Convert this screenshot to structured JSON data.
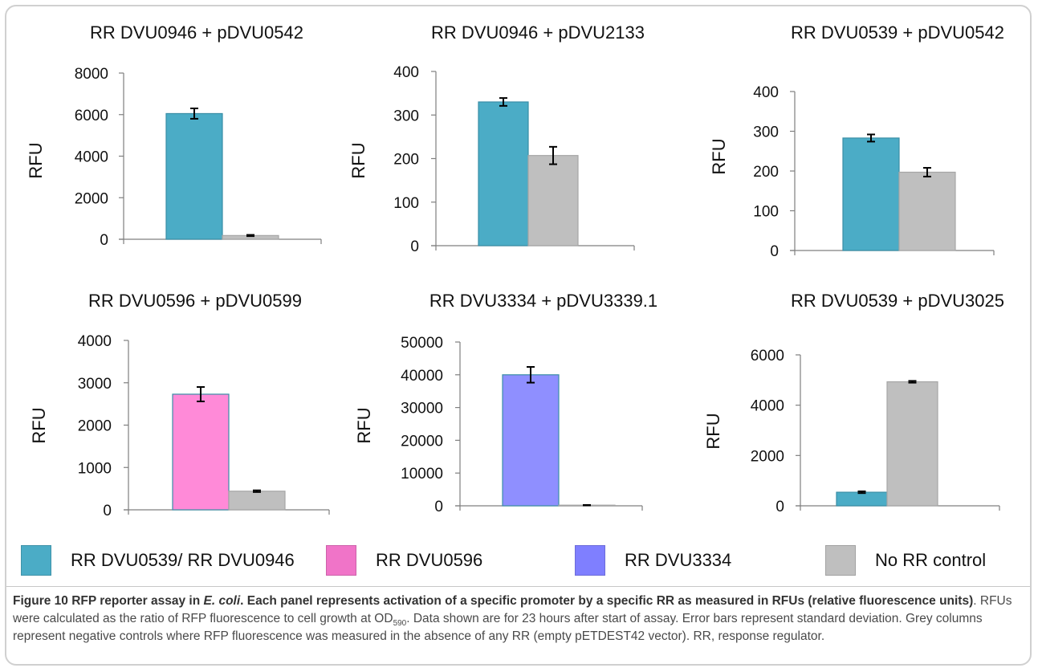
{
  "chart_data": [
    {
      "type": "bar",
      "title": "RR DVU0946 + pDVU0542",
      "ylabel": "RFU",
      "ylim": [
        0,
        8000
      ],
      "yticks": [
        0,
        2000,
        4000,
        6000,
        8000
      ],
      "bars": [
        {
          "value": 6050,
          "error": 250,
          "color": "#4bacc6",
          "legend": "RR DVU0539/ RR DVU0946"
        },
        {
          "value": 180,
          "error": 30,
          "color": "#bfbfbf",
          "legend": "No RR control"
        }
      ]
    },
    {
      "type": "bar",
      "title": "RR DVU0946 + pDVU2133",
      "ylabel": "RFU",
      "ylim": [
        0,
        400
      ],
      "yticks": [
        0,
        100,
        200,
        300,
        400
      ],
      "bars": [
        {
          "value": 330,
          "error": 9,
          "color": "#4bacc6",
          "legend": "RR DVU0539/ RR DVU0946"
        },
        {
          "value": 207,
          "error": 20,
          "color": "#bfbfbf",
          "legend": "No RR control"
        }
      ]
    },
    {
      "type": "bar",
      "title": "RR DVU0539 + pDVU0542",
      "ylabel": "RFU",
      "ylim": [
        0,
        400
      ],
      "yticks": [
        0,
        100,
        200,
        300,
        400
      ],
      "bars": [
        {
          "value": 283,
          "error": 9,
          "color": "#4bacc6",
          "legend": "RR DVU0539/ RR DVU0946"
        },
        {
          "value": 197,
          "error": 11,
          "color": "#bfbfbf",
          "legend": "No RR control"
        }
      ]
    },
    {
      "type": "bar",
      "title": "RR DVU0596 + pDVU0599",
      "ylabel": "RFU",
      "ylim": [
        0,
        4000
      ],
      "yticks": [
        0,
        1000,
        2000,
        3000,
        4000
      ],
      "bars": [
        {
          "value": 2730,
          "error": 170,
          "color": "#ff8ad8",
          "legend": "RR DVU0596"
        },
        {
          "value": 440,
          "error": 20,
          "color": "#bfbfbf",
          "legend": "No RR control"
        }
      ]
    },
    {
      "type": "bar",
      "title": "RR DVU3334 + pDVU3339.1",
      "ylabel": "RFU",
      "ylim": [
        0,
        50000
      ],
      "yticks": [
        0,
        10000,
        20000,
        30000,
        40000,
        50000
      ],
      "bars": [
        {
          "value": 40000,
          "error": 2400,
          "color": "#8f8fff",
          "legend": "RR DVU3334"
        },
        {
          "value": 200,
          "error": 60,
          "color": "#bfbfbf",
          "legend": "No RR control"
        }
      ]
    },
    {
      "type": "bar",
      "title": "RR DVU0539 + pDVU3025",
      "ylabel": "RFU",
      "ylim": [
        0,
        6000
      ],
      "yticks": [
        0,
        2000,
        4000,
        6000
      ],
      "bars": [
        {
          "value": 540,
          "error": 35,
          "color": "#4bacc6",
          "legend": "RR DVU0539/ RR DVU0946"
        },
        {
          "value": 4930,
          "error": 35,
          "color": "#bfbfbf",
          "legend": "No RR control"
        }
      ]
    }
  ],
  "legend": [
    {
      "label": "RR DVU0539/ RR DVU0946",
      "color": "#4bacc6"
    },
    {
      "label": "RR DVU0596",
      "color": "#f074c8"
    },
    {
      "label": "RR DVU3334",
      "color": "#7f7fff"
    },
    {
      "label": "No RR control",
      "color": "#bfbfbf"
    }
  ],
  "caption": {
    "fig_label": "Figure 10",
    "title_pre": "RFP reporter assay in ",
    "title_italic": "E. coli",
    "title_post": ".",
    "bold_rest": "Each panel represents activation of a specific promoter by a specific RR as measured in RFUs (relative fluorescence units)",
    "body_1": ". RFUs were calculated as the ratio of RFP fluorescence to cell growth at OD",
    "od_sub": "590",
    "body_2": ". Data shown are for 23 hours after start of assay. Error bars represent standard deviation. Grey columns represent negative controls where RFP fluorescence was measured in the absence of any RR (empty pETDEST42 vector). RR, response regulator."
  }
}
